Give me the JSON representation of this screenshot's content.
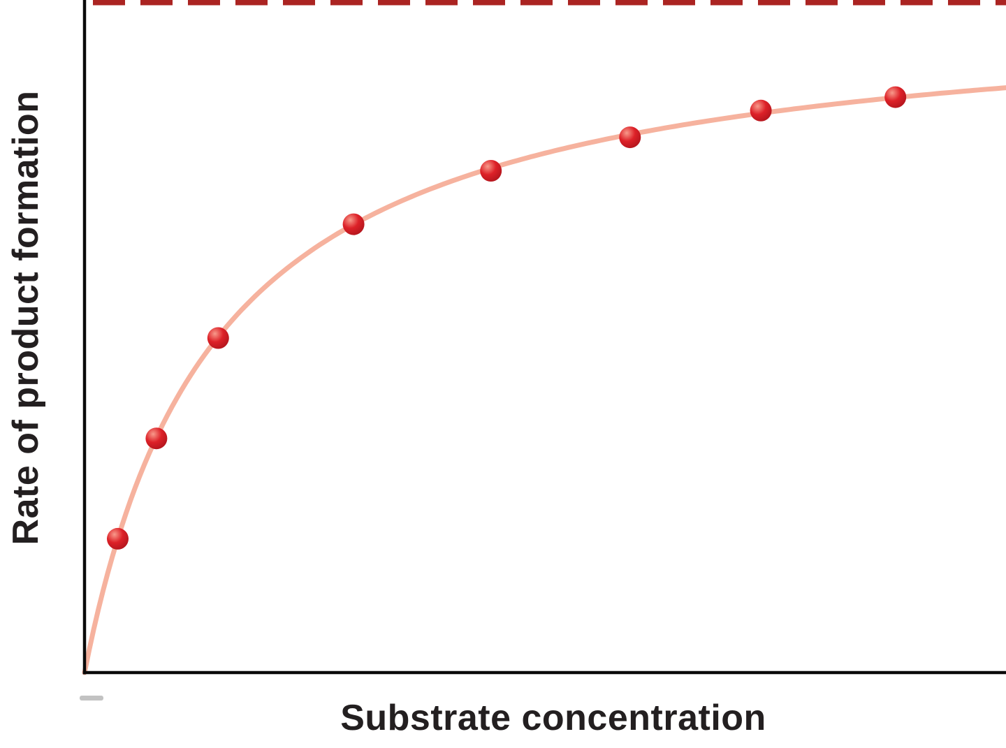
{
  "chart_data": {
    "type": "scatter",
    "title": "",
    "xlabel": "Substrate concentration",
    "ylabel": "Rate of product formation",
    "model": "michaelis-menten saturation curve",
    "x_range": [
      0,
      10
    ],
    "y_range": [
      0,
      1.05
    ],
    "vmax": 1.0,
    "km": 1.44,
    "asymptote": {
      "value": 1.0,
      "line_style": "dashed"
    },
    "points": [
      {
        "x": 0.36,
        "y": 0.2
      },
      {
        "x": 0.78,
        "y": 0.35
      },
      {
        "x": 1.45,
        "y": 0.5
      },
      {
        "x": 2.92,
        "y": 0.67
      },
      {
        "x": 4.41,
        "y": 0.75
      },
      {
        "x": 5.92,
        "y": 0.8
      },
      {
        "x": 7.34,
        "y": 0.84
      },
      {
        "x": 8.8,
        "y": 0.86
      }
    ],
    "grid": false,
    "legend": false,
    "tick_labels": "none",
    "colors": {
      "curve": "#f6b29e",
      "point": "#dd2128",
      "point_edge": "#a8121a",
      "point_highlight": "#f89a8b",
      "asymptote": "#ab2422",
      "axis": "#0a0a0a",
      "text": "#231f20"
    }
  }
}
